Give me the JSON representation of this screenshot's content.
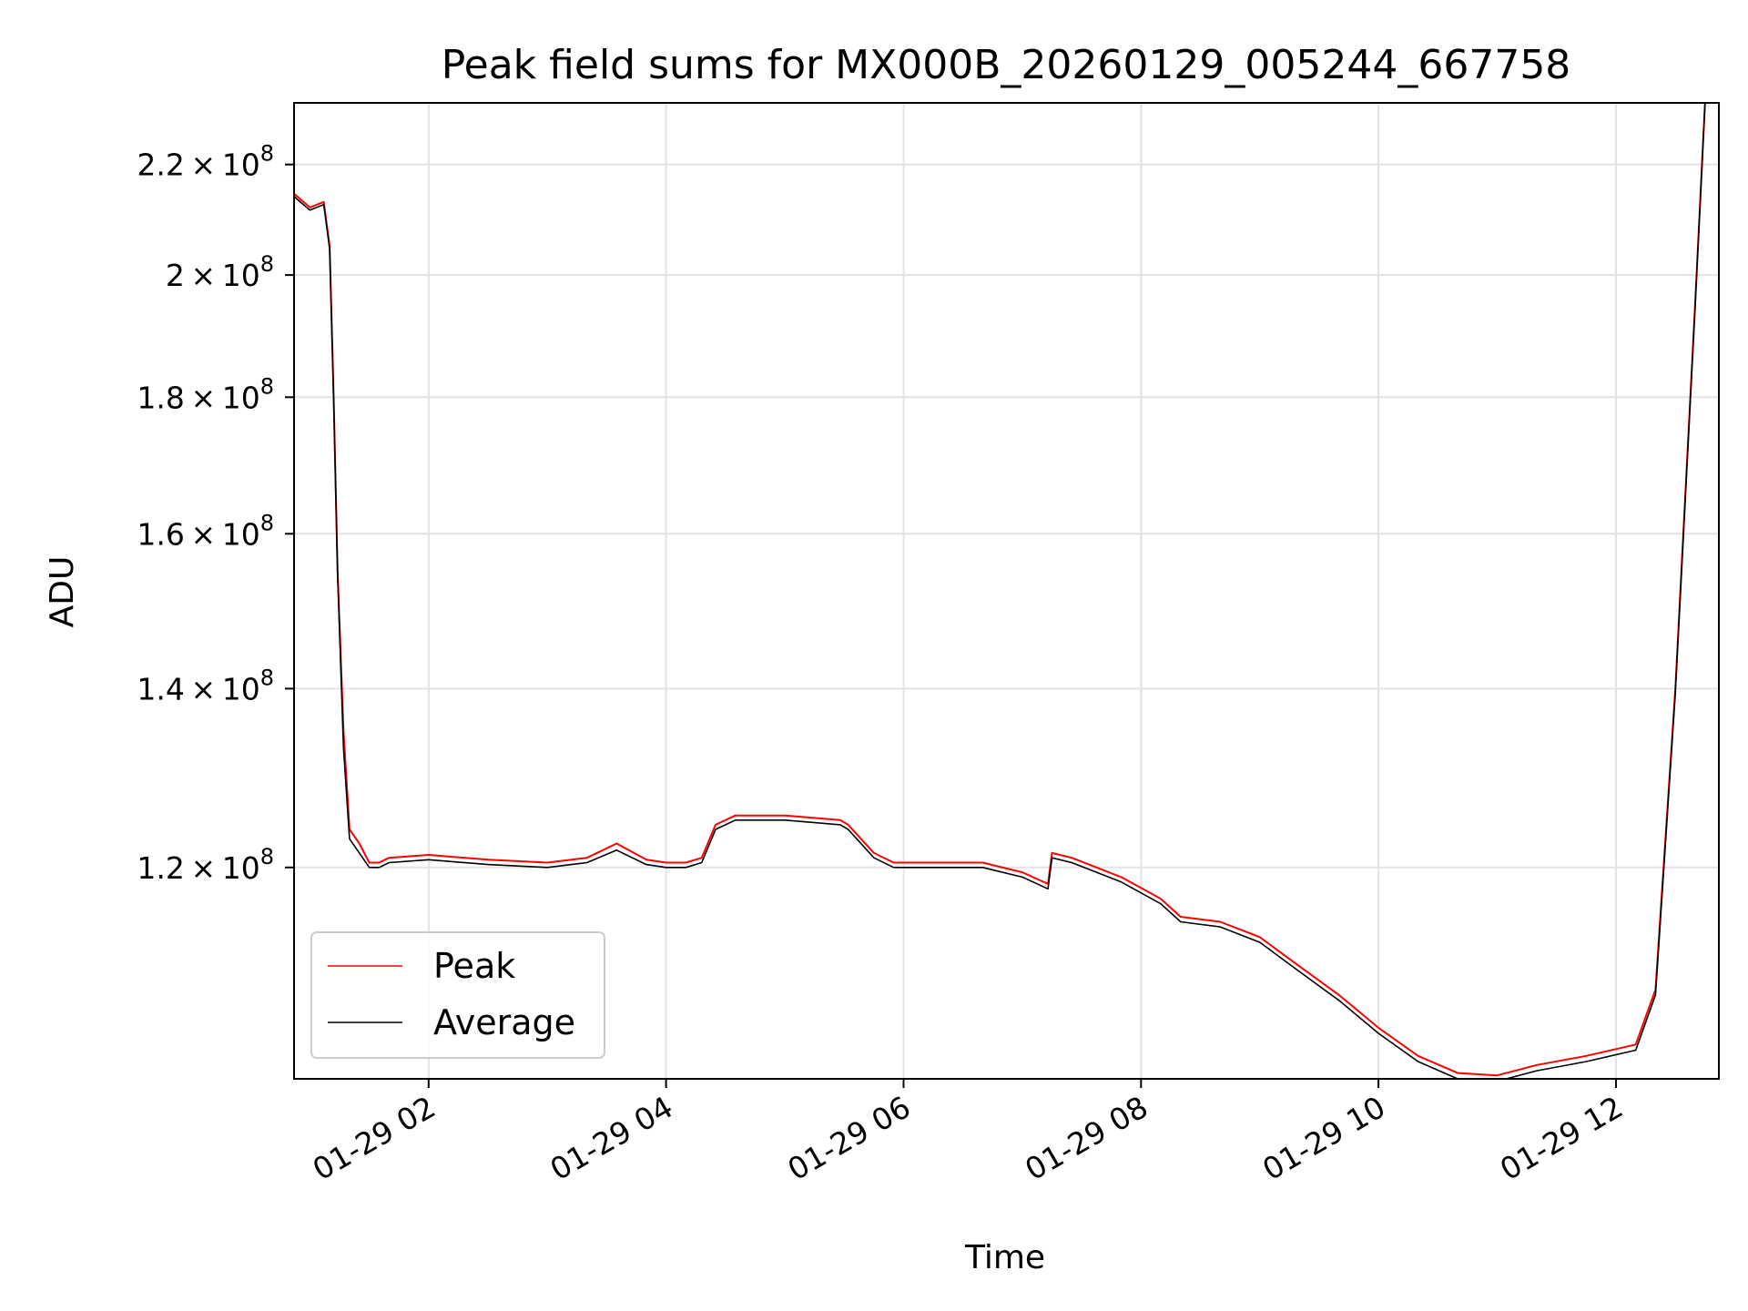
{
  "chart_data": {
    "type": "line",
    "title": "Peak field sums for MX000B_20260129_005244_667758",
    "xlabel": "Time",
    "ylabel": "ADU",
    "yscale": "log",
    "xlim": [
      "2026-01-29 00:52",
      "2026-01-29 12:52"
    ],
    "ylim": [
      100000000.0,
      232000000.0
    ],
    "xticks": [
      {
        "value": "2026-01-29 02:00",
        "label": "01-29 02"
      },
      {
        "value": "2026-01-29 04:00",
        "label": "01-29 04"
      },
      {
        "value": "2026-01-29 06:00",
        "label": "01-29 06"
      },
      {
        "value": "2026-01-29 08:00",
        "label": "01-29 08"
      },
      {
        "value": "2026-01-29 10:00",
        "label": "01-29 10"
      },
      {
        "value": "2026-01-29 12:00",
        "label": "01-29 12"
      }
    ],
    "yticks": [
      {
        "value": 120000000.0,
        "mant": "1.2",
        "exp": "8"
      },
      {
        "value": 140000000.0,
        "mant": "1.4",
        "exp": "8"
      },
      {
        "value": 160000000.0,
        "mant": "1.6",
        "exp": "8"
      },
      {
        "value": 180000000.0,
        "mant": "1.8",
        "exp": "8"
      },
      {
        "value": 200000000.0,
        "mant": "2",
        "exp": "8"
      },
      {
        "value": 220000000.0,
        "mant": "2.2",
        "exp": "8"
      }
    ],
    "times_mark": "×",
    "grid": true,
    "legend_position": "lower-left",
    "series": [
      {
        "name": "Peak",
        "color": "#ff0000",
        "x": [
          "2026-01-29 00:52",
          "2026-01-29 01:00",
          "2026-01-29 01:07",
          "2026-01-29 01:10",
          "2026-01-29 01:12",
          "2026-01-29 01:14",
          "2026-01-29 01:17",
          "2026-01-29 01:20",
          "2026-01-29 01:25",
          "2026-01-29 01:30",
          "2026-01-29 01:35",
          "2026-01-29 01:40",
          "2026-01-29 02:00",
          "2026-01-29 02:30",
          "2026-01-29 03:00",
          "2026-01-29 03:20",
          "2026-01-29 03:35",
          "2026-01-29 03:50",
          "2026-01-29 04:00",
          "2026-01-29 04:10",
          "2026-01-29 04:18",
          "2026-01-29 04:25",
          "2026-01-29 04:35",
          "2026-01-29 05:00",
          "2026-01-29 05:28",
          "2026-01-29 05:32",
          "2026-01-29 05:45",
          "2026-01-29 05:55",
          "2026-01-29 06:10",
          "2026-01-29 06:40",
          "2026-01-29 07:00",
          "2026-01-29 07:13",
          "2026-01-29 07:15",
          "2026-01-29 07:25",
          "2026-01-29 07:50",
          "2026-01-29 08:10",
          "2026-01-29 08:20",
          "2026-01-29 08:40",
          "2026-01-29 09:00",
          "2026-01-29 09:20",
          "2026-01-29 09:40",
          "2026-01-29 10:00",
          "2026-01-29 10:20",
          "2026-01-29 10:40",
          "2026-01-29 11:00",
          "2026-01-29 11:20",
          "2026-01-29 11:45",
          "2026-01-29 12:10",
          "2026-01-29 12:20",
          "2026-01-29 12:30",
          "2026-01-29 12:40",
          "2026-01-29 12:45"
        ],
        "y": [
          214500000.0,
          212000000.0,
          213000000.0,
          205000000.0,
          180000000.0,
          155000000.0,
          135000000.0,
          124000000.0,
          122500000.0,
          120500000.0,
          120500000.0,
          121000000.0,
          121300000.0,
          120800000.0,
          120500000.0,
          121000000.0,
          122500000.0,
          120800000.0,
          120500000.0,
          120500000.0,
          121000000.0,
          124500000.0,
          125500000.0,
          125500000.0,
          125000000.0,
          124500000.0,
          121500000.0,
          120500000.0,
          120500000.0,
          120500000.0,
          119500000.0,
          118300000.0,
          121500000.0,
          121000000.0,
          119000000.0,
          116800000.0,
          115000000.0,
          114500000.0,
          113000000.0,
          110200000.0,
          107500000.0,
          104500000.0,
          102000000.0,
          100500000.0,
          100300000.0,
          101200000.0,
          102000000.0,
          103000000.0,
          108000000.0,
          140000000.0,
          195000000.0,
          232000000.0
        ]
      },
      {
        "name": "Average",
        "color": "#000000",
        "x": [
          "2026-01-29 00:52",
          "2026-01-29 01:00",
          "2026-01-29 01:07",
          "2026-01-29 01:10",
          "2026-01-29 01:12",
          "2026-01-29 01:14",
          "2026-01-29 01:17",
          "2026-01-29 01:20",
          "2026-01-29 01:25",
          "2026-01-29 01:30",
          "2026-01-29 01:35",
          "2026-01-29 01:40",
          "2026-01-29 02:00",
          "2026-01-29 02:30",
          "2026-01-29 03:00",
          "2026-01-29 03:20",
          "2026-01-29 03:35",
          "2026-01-29 03:50",
          "2026-01-29 04:00",
          "2026-01-29 04:10",
          "2026-01-29 04:18",
          "2026-01-29 04:25",
          "2026-01-29 04:35",
          "2026-01-29 05:00",
          "2026-01-29 05:28",
          "2026-01-29 05:32",
          "2026-01-29 05:45",
          "2026-01-29 05:55",
          "2026-01-29 06:10",
          "2026-01-29 06:40",
          "2026-01-29 07:00",
          "2026-01-29 07:13",
          "2026-01-29 07:15",
          "2026-01-29 07:25",
          "2026-01-29 07:50",
          "2026-01-29 08:10",
          "2026-01-29 08:20",
          "2026-01-29 08:40",
          "2026-01-29 09:00",
          "2026-01-29 09:20",
          "2026-01-29 09:40",
          "2026-01-29 10:00",
          "2026-01-29 10:20",
          "2026-01-29 10:40",
          "2026-01-29 11:00",
          "2026-01-29 11:20",
          "2026-01-29 11:45",
          "2026-01-29 12:10",
          "2026-01-29 12:20",
          "2026-01-29 12:30",
          "2026-01-29 12:40",
          "2026-01-29 12:45"
        ],
        "y": [
          214000000.0,
          211500000.0,
          212500000.0,
          204500000.0,
          179500000.0,
          154500000.0,
          133000000.0,
          123000000.0,
          121500000.0,
          120000000.0,
          120000000.0,
          120500000.0,
          120800000.0,
          120300000.0,
          120000000.0,
          120500000.0,
          121800000.0,
          120300000.0,
          120000000.0,
          120000000.0,
          120500000.0,
          124000000.0,
          125000000.0,
          125000000.0,
          124500000.0,
          124000000.0,
          121000000.0,
          120000000.0,
          120000000.0,
          120000000.0,
          119000000.0,
          117800000.0,
          121000000.0,
          120500000.0,
          118500000.0,
          116300000.0,
          114500000.0,
          114000000.0,
          112500000.0,
          109700000.0,
          107000000.0,
          104000000.0,
          101500000.0,
          100000000.0,
          99800000.0,
          100700000.0,
          101500000.0,
          102500000.0,
          107500000.0,
          139500000.0,
          194500000.0,
          232000000.0
        ]
      }
    ]
  }
}
